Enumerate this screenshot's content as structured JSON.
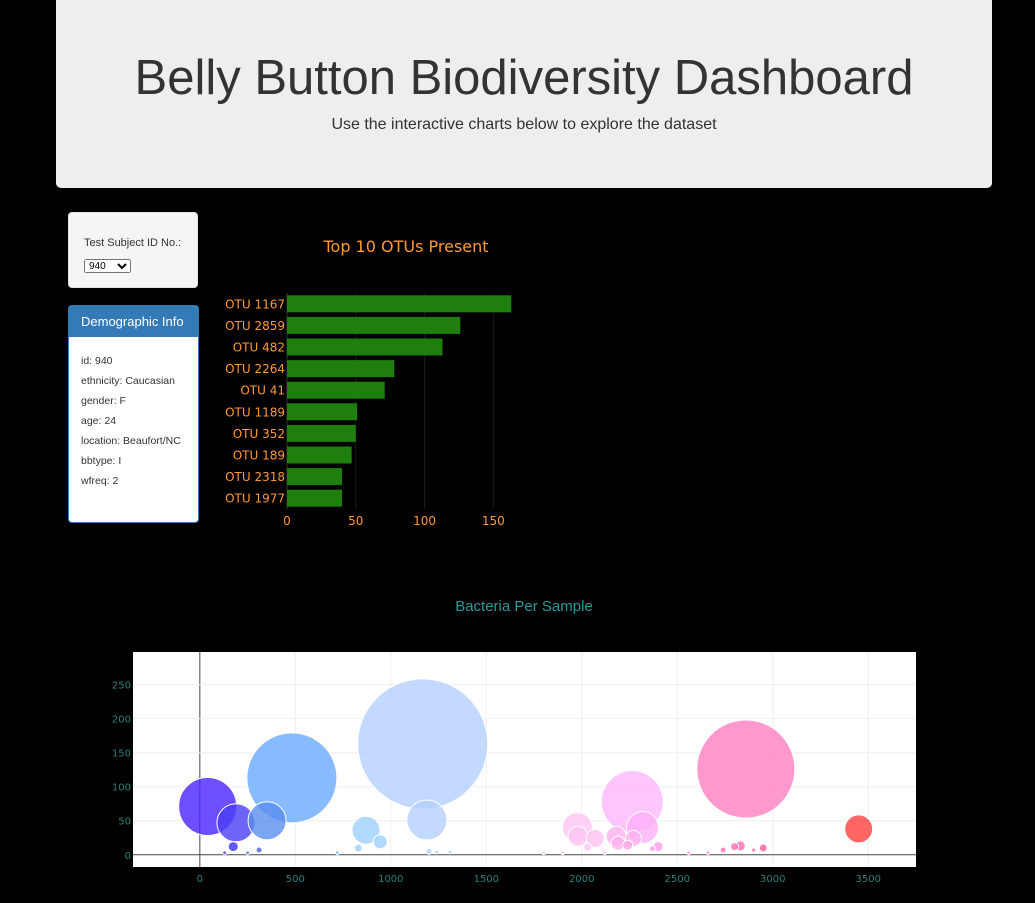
{
  "header": {
    "title": "Belly Button Biodiversity Dashboard",
    "subtitle": "Use the interactive charts below to explore the dataset"
  },
  "selector": {
    "label": "Test Subject ID No.:",
    "selected": "940"
  },
  "demographics": {
    "title": "Demographic Info",
    "items": [
      "id: 940",
      "ethnicity: Caucasian",
      "gender: F",
      "age: 24",
      "location: Beaufort/NC",
      "bbtype: I",
      "wfreq: 2"
    ]
  },
  "colors": {
    "bar_fill": "#1e7e0e",
    "bar_text": "#ff9933",
    "bubble_title": "#2a9a9a",
    "bubble_tick": "#2a7f7f"
  },
  "chart_data": [
    {
      "type": "bar",
      "orientation": "horizontal",
      "title": "Top 10 OTUs Present",
      "categories": [
        "OTU 1167",
        "OTU 2859",
        "OTU 482",
        "OTU 2264",
        "OTU 41",
        "OTU 1189",
        "OTU 352",
        "OTU 189",
        "OTU 2318",
        "OTU 1977"
      ],
      "values": [
        163,
        126,
        113,
        78,
        71,
        51,
        50,
        47,
        40,
        40
      ],
      "xticks": [
        0,
        50,
        100,
        150
      ],
      "xlim": [
        0,
        165
      ]
    },
    {
      "type": "scatter",
      "subtype": "bubble",
      "title": "Bacteria Per Sample",
      "xlim": [
        -350,
        3750
      ],
      "ylim": [
        -18,
        298
      ],
      "xticks": [
        0,
        500,
        1000,
        1500,
        2000,
        2500,
        3000,
        3500
      ],
      "yticks": [
        0,
        50,
        100,
        150,
        200,
        250
      ],
      "grid": true,
      "points": [
        {
          "x": 41,
          "y": 71,
          "r": 29,
          "color": "#4a23ff"
        },
        {
          "x": 189,
          "y": 47,
          "r": 19,
          "color": "#4a3df5"
        },
        {
          "x": 352,
          "y": 50,
          "r": 19,
          "color": "#5a8fee"
        },
        {
          "x": 482,
          "y": 113,
          "r": 45,
          "color": "#6aaafc"
        },
        {
          "x": 1167,
          "y": 163,
          "r": 65,
          "color": "#b5d0ff"
        },
        {
          "x": 1189,
          "y": 51,
          "r": 20,
          "color": "#b5d0ff"
        },
        {
          "x": 870,
          "y": 36,
          "r": 14,
          "color": "#9fd0ff"
        },
        {
          "x": 945,
          "y": 19,
          "r": 7,
          "color": "#9fd0ff"
        },
        {
          "x": 2264,
          "y": 78,
          "r": 31,
          "color": "#ffb6ff"
        },
        {
          "x": 2318,
          "y": 40,
          "r": 16,
          "color": "#ffb0f8"
        },
        {
          "x": 2859,
          "y": 126,
          "r": 49,
          "color": "#ff7ec0"
        },
        {
          "x": 3450,
          "y": 38,
          "r": 14,
          "color": "#ff4040"
        },
        {
          "x": 1977,
          "y": 40,
          "r": 15,
          "color": "#ffc6f4"
        },
        {
          "x": 1980,
          "y": 27,
          "r": 10,
          "color": "#ffc6f4"
        },
        {
          "x": 2070,
          "y": 24,
          "r": 9,
          "color": "#ffc0f0"
        },
        {
          "x": 2180,
          "y": 27,
          "r": 10,
          "color": "#ffb0ee"
        },
        {
          "x": 2190,
          "y": 17,
          "r": 7,
          "color": "#ffb0ee"
        },
        {
          "x": 2270,
          "y": 24,
          "r": 8,
          "color": "#ffb0f0"
        },
        {
          "x": 2240,
          "y": 14,
          "r": 5,
          "color": "#ff9ee6"
        },
        {
          "x": 2400,
          "y": 12,
          "r": 5,
          "color": "#ff9ee6"
        },
        {
          "x": 2370,
          "y": 9,
          "r": 3,
          "color": "#ff9ee6"
        },
        {
          "x": 2030,
          "y": 11,
          "r": 4,
          "color": "#ffc6f4"
        },
        {
          "x": 175,
          "y": 12,
          "r": 5,
          "color": "#3a30f0"
        },
        {
          "x": 310,
          "y": 7,
          "r": 3,
          "color": "#4a60e0"
        },
        {
          "x": 830,
          "y": 10,
          "r": 4,
          "color": "#a0d0ff"
        },
        {
          "x": 2800,
          "y": 12,
          "r": 4,
          "color": "#ff6ab0"
        },
        {
          "x": 2830,
          "y": 13,
          "r": 5,
          "color": "#ff6ab0"
        },
        {
          "x": 2740,
          "y": 7,
          "r": 3,
          "color": "#ff70b0"
        },
        {
          "x": 2950,
          "y": 10,
          "r": 4,
          "color": "#ff5c9a"
        },
        {
          "x": 2900,
          "y": 7,
          "r": 2,
          "color": "#ff5c9a"
        },
        {
          "x": 1200,
          "y": 5,
          "r": 3,
          "color": "#b5d0ff"
        },
        {
          "x": 1310,
          "y": 4,
          "r": 2,
          "color": "#b5d0ff"
        },
        {
          "x": 1240,
          "y": 4,
          "r": 2,
          "color": "#b5d0ff"
        },
        {
          "x": 130,
          "y": 3,
          "r": 2,
          "color": "#4a40ff"
        },
        {
          "x": 250,
          "y": 3,
          "r": 2,
          "color": "#5070ee"
        },
        {
          "x": 720,
          "y": 3,
          "r": 2,
          "color": "#80bfff"
        },
        {
          "x": 1800,
          "y": 3,
          "r": 2,
          "color": "#e0d0ff"
        },
        {
          "x": 1900,
          "y": 3,
          "r": 2,
          "color": "#f0c8ff"
        },
        {
          "x": 2120,
          "y": 3,
          "r": 2,
          "color": "#ffc0f0"
        },
        {
          "x": 2560,
          "y": 3,
          "r": 2,
          "color": "#ffa0e0"
        },
        {
          "x": 2660,
          "y": 3,
          "r": 2,
          "color": "#ff90d0"
        }
      ]
    }
  ]
}
